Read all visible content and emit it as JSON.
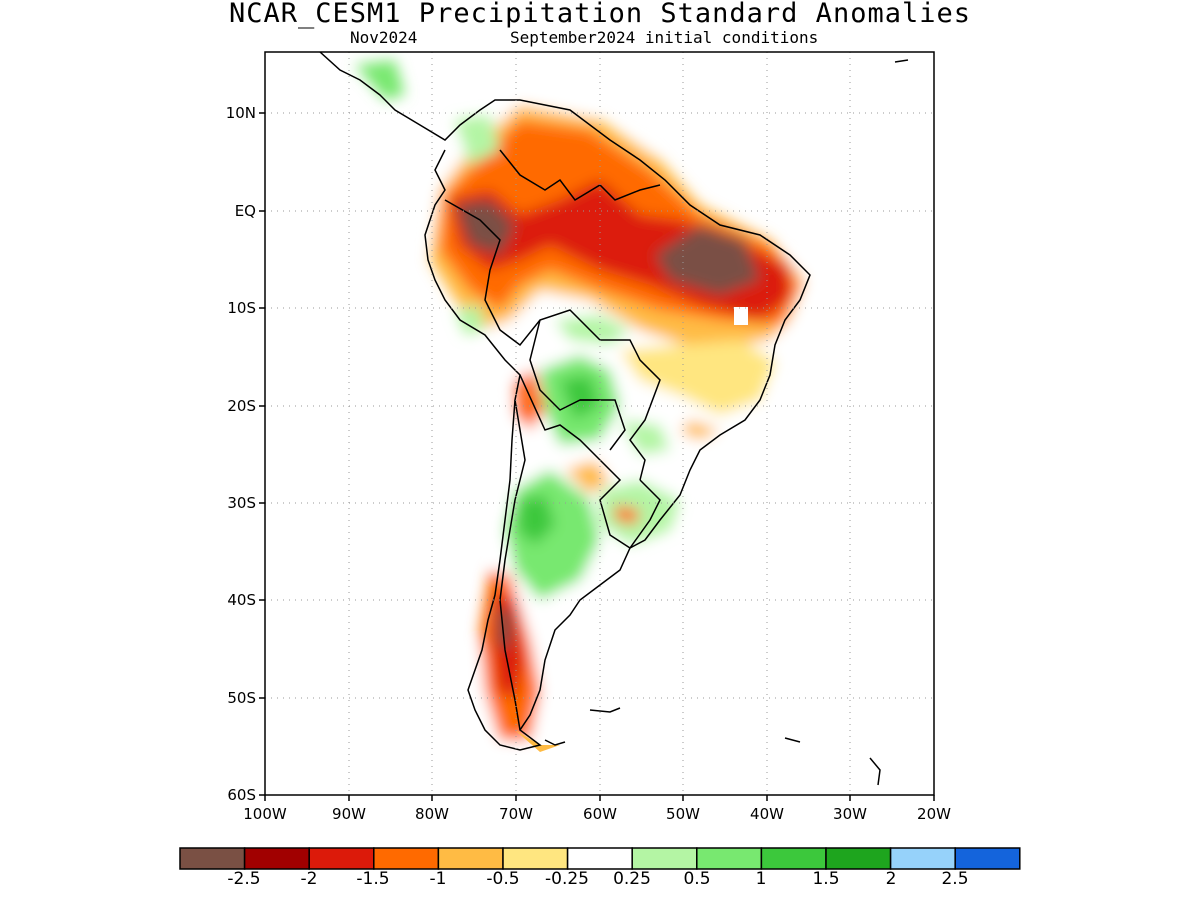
{
  "title": "NCAR_CESM1 Precipitation Standard Anomalies",
  "subtitle_left": "Nov2024",
  "subtitle_right": "September2024 initial conditions",
  "lat_labels": [
    "10N",
    "EQ",
    "10S",
    "20S",
    "30S",
    "40S",
    "50S",
    "60S"
  ],
  "lon_labels": [
    "100W",
    "90W",
    "80W",
    "70W",
    "60W",
    "50W",
    "40W",
    "30W",
    "20W"
  ],
  "map_extent": {
    "lon_min": -100,
    "lon_max": -20,
    "lat_min": -60,
    "lat_max": 15
  },
  "colorbar": {
    "labels": [
      "-2.5",
      "-2",
      "-1.5",
      "-1",
      "-0.5",
      "-0.25",
      "0.25",
      "0.5",
      "1",
      "1.5",
      "2",
      "2.5"
    ],
    "colors": [
      "#7a5044",
      "#a10000",
      "#dc1a0a",
      "#ff6a00",
      "#ffbb44",
      "#ffe680",
      "#ffffff",
      "#b4f5a4",
      "#78e870",
      "#3cc83c",
      "#1ea51e",
      "#96d2fa",
      "#1464dc"
    ]
  }
}
